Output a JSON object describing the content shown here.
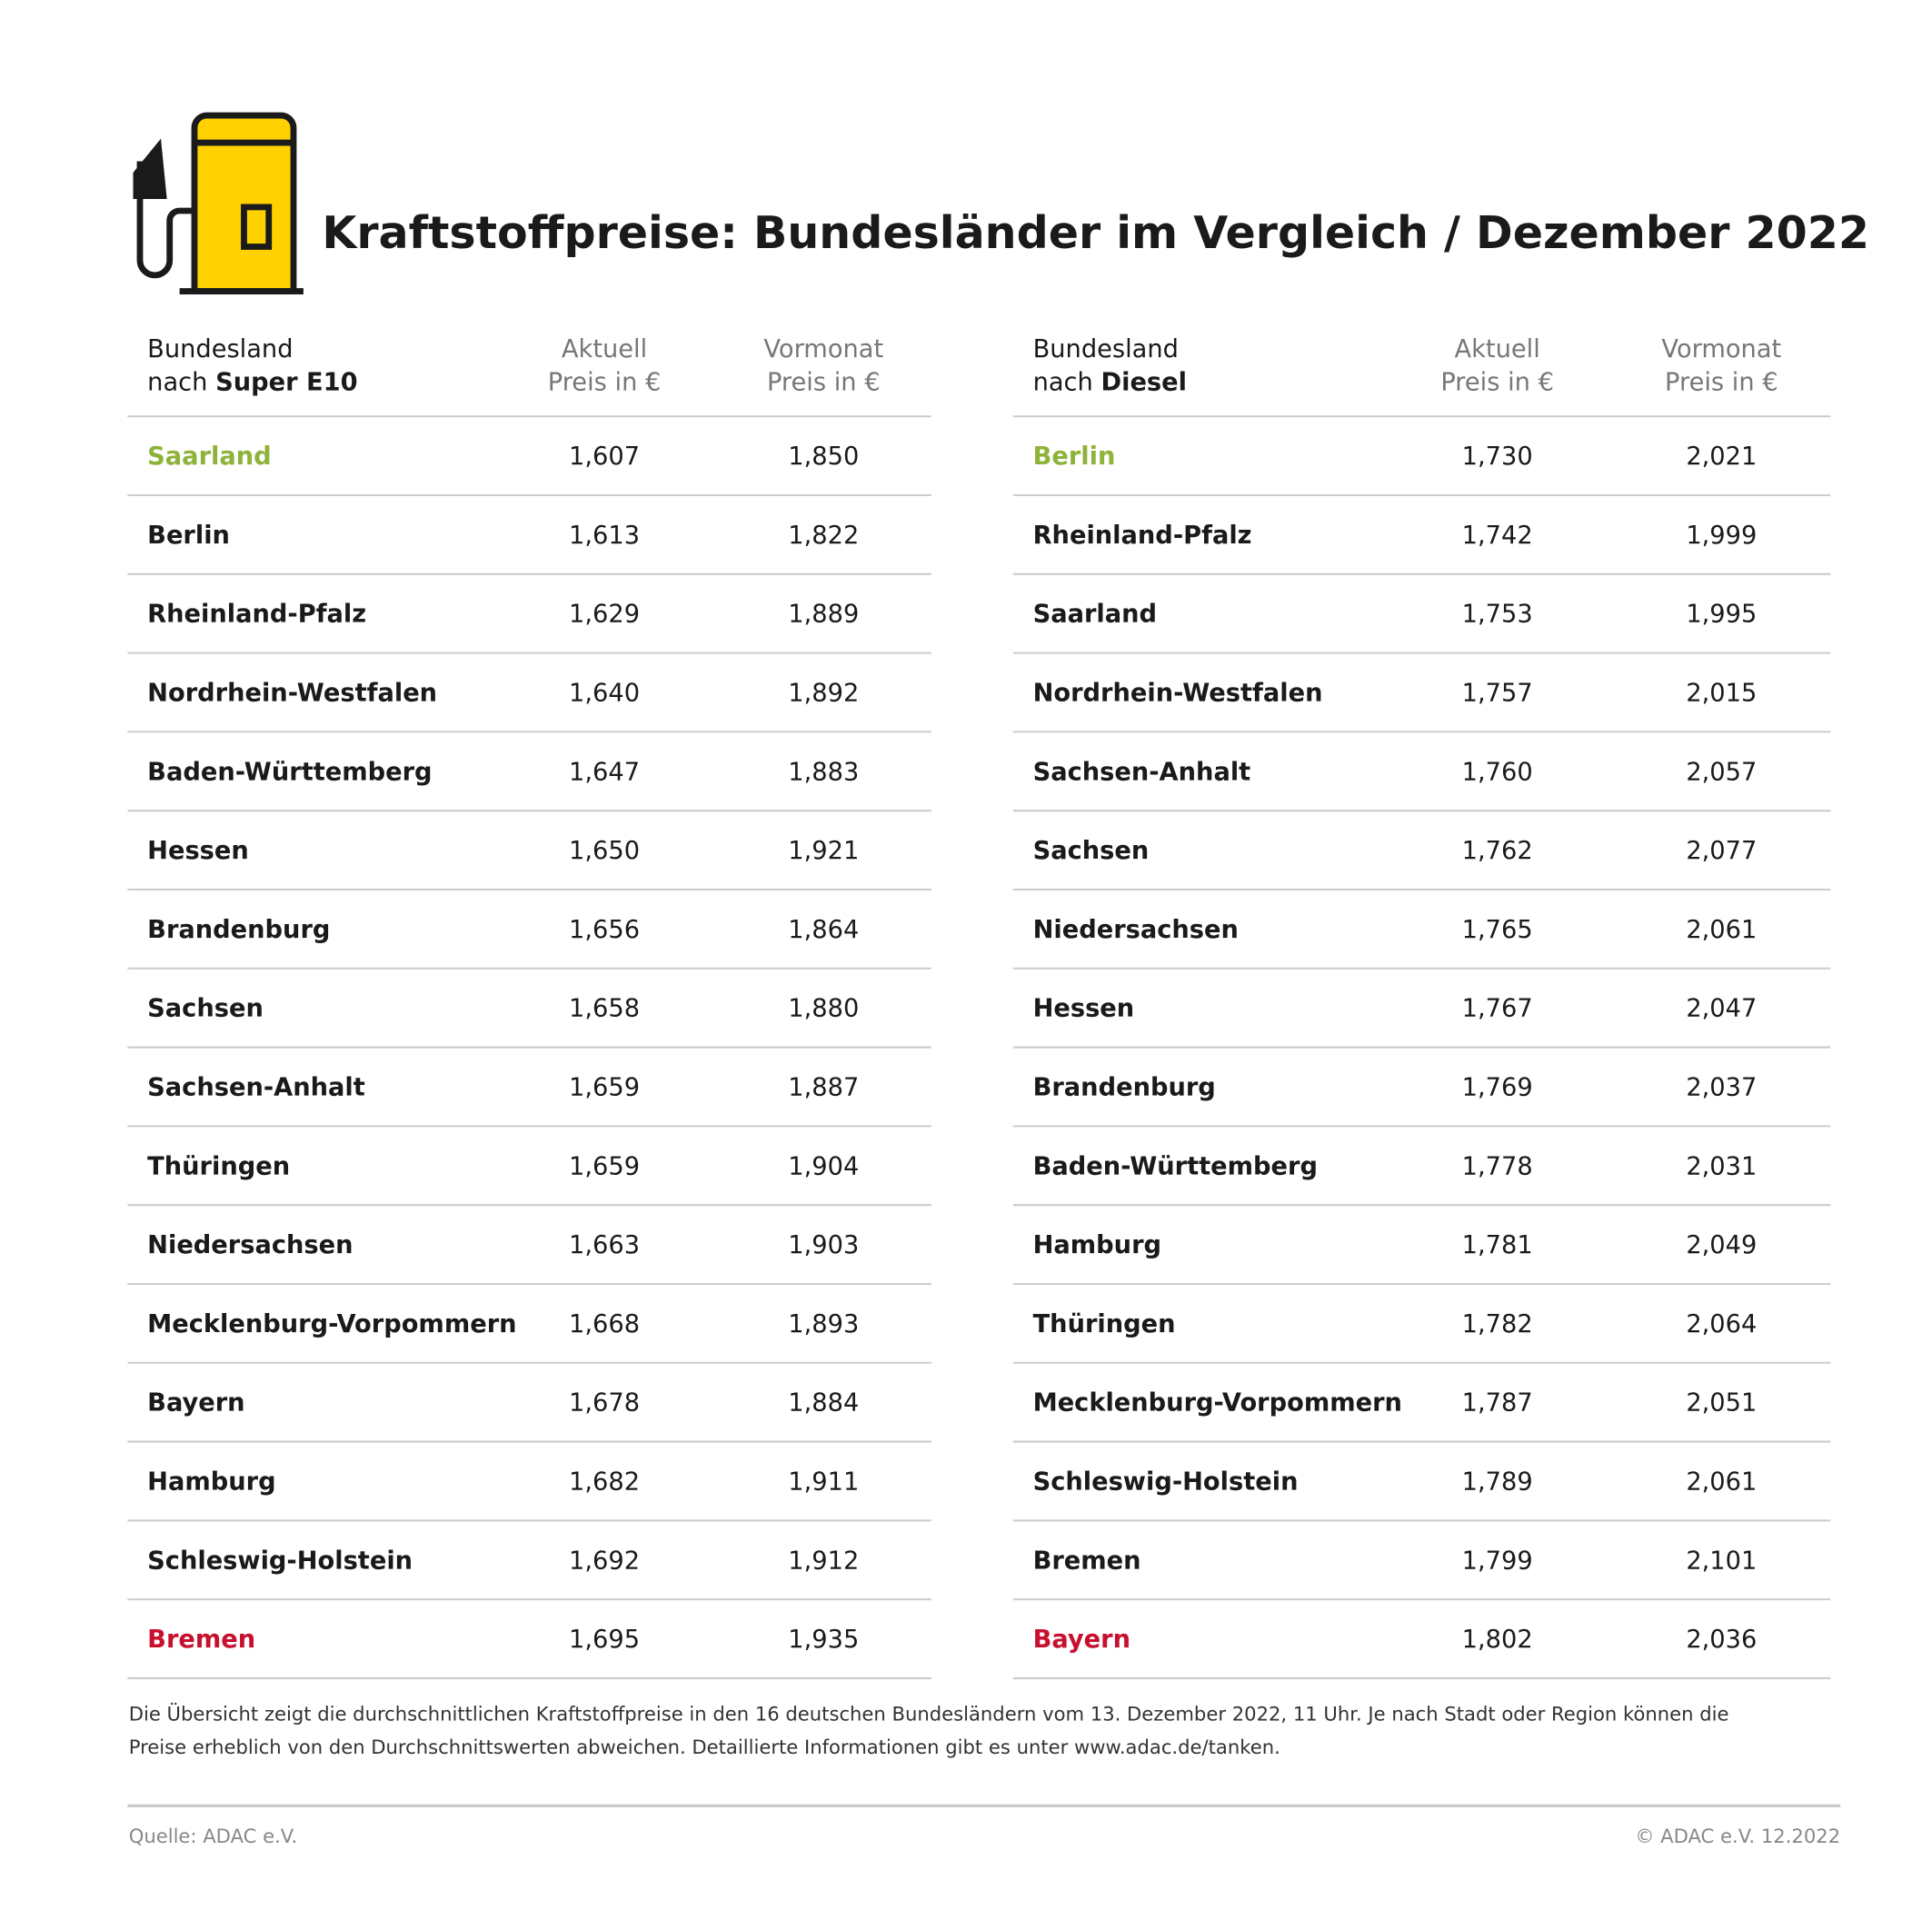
{
  "header": {
    "title": "Kraftstoffpreise: Bundesländer im Vergleich / Dezember 2022"
  },
  "tables": [
    {
      "header": {
        "state": "Bundesland",
        "prefix": "nach",
        "fuel": "Super E10",
        "current": [
          "Aktuell",
          "Preis in €"
        ],
        "previous": [
          "Vormonat",
          "Preis in €"
        ]
      },
      "rows": [
        [
          "Saarland",
          "1,607",
          "1,850"
        ],
        [
          "Berlin",
          "1,613",
          "1,822"
        ],
        [
          "Rheinland-Pfalz",
          "1,629",
          "1,889"
        ],
        [
          "Nordrhein-Westfalen",
          "1,640",
          "1,892"
        ],
        [
          "Baden-Württemberg",
          "1,647",
          "1,883"
        ],
        [
          "Hessen",
          "1,650",
          "1,921"
        ],
        [
          "Brandenburg",
          "1,656",
          "1,864"
        ],
        [
          "Sachsen",
          "1,658",
          "1,880"
        ],
        [
          "Sachsen-Anhalt",
          "1,659",
          "1,887"
        ],
        [
          "Thüringen",
          "1,659",
          "1,904"
        ],
        [
          "Niedersachsen",
          "1,663",
          "1,903"
        ],
        [
          "Mecklenburg-Vorpommern",
          "1,668",
          "1,893"
        ],
        [
          "Bayern",
          "1,678",
          "1,884"
        ],
        [
          "Hamburg",
          "1,682",
          "1,911"
        ],
        [
          "Schleswig-Holstein",
          "1,692",
          "1,912"
        ],
        [
          "Bremen",
          "1,695",
          "1,935"
        ]
      ]
    },
    {
      "header": {
        "state": "Bundesland",
        "prefix": "nach",
        "fuel": "Diesel",
        "current": [
          "Aktuell",
          "Preis in €"
        ],
        "previous": [
          "Vormonat",
          "Preis in €"
        ]
      },
      "rows": [
        [
          "Berlin",
          "1,730",
          "2,021"
        ],
        [
          "Rheinland-Pfalz",
          "1,742",
          "1,999"
        ],
        [
          "Saarland",
          "1,753",
          "1,995"
        ],
        [
          "Nordrhein-Westfalen",
          "1,757",
          "2,015"
        ],
        [
          "Sachsen-Anhalt",
          "1,760",
          "2,057"
        ],
        [
          "Sachsen",
          "1,762",
          "2,077"
        ],
        [
          "Niedersachsen",
          "1,765",
          "2,061"
        ],
        [
          "Hessen",
          "1,767",
          "2,047"
        ],
        [
          "Brandenburg",
          "1,769",
          "2,037"
        ],
        [
          "Baden-Württemberg",
          "1,778",
          "2,031"
        ],
        [
          "Hamburg",
          "1,781",
          "2,049"
        ],
        [
          "Thüringen",
          "1,782",
          "2,064"
        ],
        [
          "Mecklenburg-Vorpommern",
          "1,787",
          "2,051"
        ],
        [
          "Schleswig-Holstein",
          "1,789",
          "2,061"
        ],
        [
          "Bremen",
          "1,799",
          "2,101"
        ],
        [
          "Bayern",
          "1,802",
          "2,036"
        ]
      ]
    }
  ],
  "footnote": [
    "Die Übersicht zeigt die durchschnittlichen Kraftstoffpreise in den 16 deutschen Bundesländern vom 13. Dezember 2022, 11 Uhr. Je nach Stadt oder Region können die",
    "Preise erheblich von den Durchschnittswerten abweichen. Detaillierte Informationen gibt es unter www.adac.de/tanken."
  ],
  "source": "Quelle: ADAC e.V.",
  "copyright": "© ADAC e.V. 12.2022"
}
